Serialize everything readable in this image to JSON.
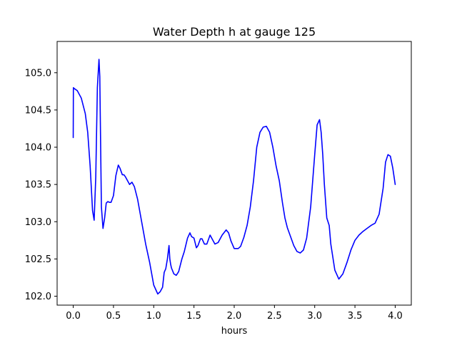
{
  "chart_data": {
    "type": "line",
    "title": "Water Depth h at gauge 125",
    "xlabel": "hours",
    "ylabel": "",
    "xlim": [
      -0.2,
      4.2
    ],
    "ylim": [
      101.88,
      105.42
    ],
    "xticks": [
      0.0,
      0.5,
      1.0,
      1.5,
      2.0,
      2.5,
      3.0,
      3.5,
      4.0
    ],
    "xtick_labels": [
      "0.0",
      "0.5",
      "1.0",
      "1.5",
      "2.0",
      "2.5",
      "3.0",
      "3.5",
      "4.0"
    ],
    "yticks": [
      102.0,
      102.5,
      103.0,
      103.5,
      104.0,
      104.5,
      105.0
    ],
    "ytick_labels": [
      "102.0",
      "102.5",
      "103.0",
      "103.5",
      "104.0",
      "104.5",
      "105.0"
    ],
    "grid": false,
    "series": [
      {
        "name": "",
        "color": "#0000ff",
        "x": [
          0.0,
          0.002,
          0.01,
          0.05,
          0.1,
          0.15,
          0.18,
          0.21,
          0.24,
          0.26,
          0.28,
          0.3,
          0.32,
          0.33,
          0.35,
          0.37,
          0.39,
          0.41,
          0.43,
          0.45,
          0.47,
          0.5,
          0.53,
          0.56,
          0.58,
          0.61,
          0.63,
          0.65,
          0.7,
          0.73,
          0.76,
          0.8,
          0.85,
          0.9,
          0.95,
          1.0,
          1.05,
          1.08,
          1.11,
          1.13,
          1.15,
          1.17,
          1.19,
          1.2,
          1.21,
          1.22,
          1.25,
          1.28,
          1.31,
          1.35,
          1.38,
          1.42,
          1.45,
          1.47,
          1.5,
          1.53,
          1.55,
          1.58,
          1.6,
          1.63,
          1.66,
          1.7,
          1.73,
          1.76,
          1.8,
          1.85,
          1.9,
          1.93,
          1.96,
          2.0,
          2.05,
          2.08,
          2.12,
          2.16,
          2.2,
          2.24,
          2.28,
          2.32,
          2.36,
          2.4,
          2.44,
          2.48,
          2.52,
          2.56,
          2.6,
          2.63,
          2.66,
          2.7,
          2.74,
          2.78,
          2.82,
          2.86,
          2.9,
          2.95,
          3.0,
          3.03,
          3.06,
          3.08,
          3.1,
          3.12,
          3.15,
          3.18,
          3.2,
          3.25,
          3.3,
          3.35,
          3.4,
          3.45,
          3.5,
          3.55,
          3.6,
          3.65,
          3.7,
          3.75,
          3.8,
          3.85,
          3.88,
          3.91,
          3.94,
          3.97,
          4.0
        ],
        "y": [
          104.13,
          104.8,
          104.79,
          104.76,
          104.66,
          104.45,
          104.2,
          103.75,
          103.15,
          103.02,
          103.6,
          104.8,
          105.18,
          104.95,
          103.2,
          102.91,
          103.05,
          103.25,
          103.27,
          103.26,
          103.26,
          103.35,
          103.62,
          103.76,
          103.72,
          103.63,
          103.63,
          103.6,
          103.5,
          103.53,
          103.47,
          103.3,
          103.0,
          102.7,
          102.45,
          102.15,
          102.03,
          102.06,
          102.12,
          102.32,
          102.37,
          102.5,
          102.68,
          102.5,
          102.43,
          102.38,
          102.3,
          102.28,
          102.33,
          102.5,
          102.6,
          102.78,
          102.85,
          102.8,
          102.78,
          102.65,
          102.68,
          102.77,
          102.77,
          102.7,
          102.7,
          102.82,
          102.76,
          102.7,
          102.72,
          102.82,
          102.89,
          102.85,
          102.74,
          102.64,
          102.64,
          102.67,
          102.79,
          102.95,
          103.2,
          103.55,
          104.0,
          104.2,
          104.27,
          104.28,
          104.2,
          104.0,
          103.75,
          103.55,
          103.25,
          103.05,
          102.92,
          102.8,
          102.68,
          102.6,
          102.58,
          102.62,
          102.78,
          103.2,
          103.9,
          104.3,
          104.37,
          104.2,
          103.9,
          103.5,
          103.05,
          102.95,
          102.7,
          102.35,
          102.23,
          102.3,
          102.45,
          102.62,
          102.75,
          102.82,
          102.87,
          102.91,
          102.95,
          102.98,
          103.1,
          103.45,
          103.8,
          103.9,
          103.88,
          103.72,
          103.5
        ]
      }
    ]
  }
}
